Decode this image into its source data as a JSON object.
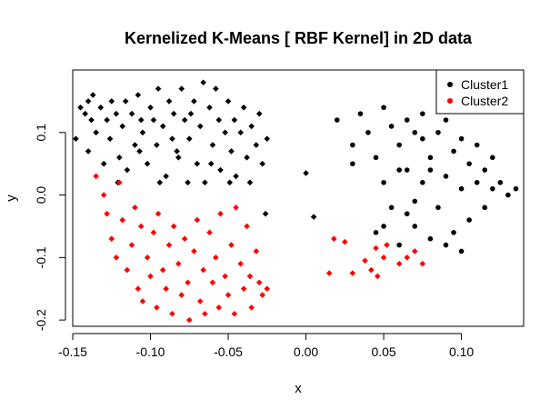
{
  "chart_data": {
    "type": "scatter",
    "title": "Kernelized K-Means [ RBF Kernel] in 2D data",
    "xlabel": "x",
    "ylabel": "y",
    "xlim": [
      -0.15,
      0.14
    ],
    "ylim": [
      -0.21,
      0.2
    ],
    "x_ticks": [
      "-0.15",
      "-0.10",
      "-0.05",
      "0.00",
      "0.05",
      "0.10"
    ],
    "y_ticks": [
      "-0.2",
      "-0.1",
      "0.0",
      "0.1"
    ],
    "grid": false,
    "legend_position": "top-right",
    "series": [
      {
        "name": "Cluster1",
        "color": "#000000",
        "markers": {
          "left_group": "diamond",
          "right_group": "circle"
        },
        "points": [
          [
            -0.145,
            0.14
          ],
          [
            -0.142,
            0.13
          ],
          [
            -0.14,
            0.07
          ],
          [
            -0.14,
            0.15
          ],
          [
            -0.138,
            0.12
          ],
          [
            -0.135,
            0.1
          ],
          [
            -0.132,
            0.14
          ],
          [
            -0.13,
            0.05
          ],
          [
            -0.128,
            0.12
          ],
          [
            -0.126,
            0.09
          ],
          [
            -0.125,
            0.15
          ],
          [
            -0.122,
            0.13
          ],
          [
            -0.12,
            0.06
          ],
          [
            -0.118,
            0.11
          ],
          [
            -0.116,
            0.15
          ],
          [
            -0.115,
            0.04
          ],
          [
            -0.112,
            0.13
          ],
          [
            -0.11,
            0.08
          ],
          [
            -0.108,
            0.16
          ],
          [
            -0.106,
            0.12
          ],
          [
            -0.105,
            0.1
          ],
          [
            -0.102,
            0.05
          ],
          [
            -0.1,
            0.14
          ],
          [
            -0.098,
            0.12
          ],
          [
            -0.096,
            0.08
          ],
          [
            -0.095,
            0.17
          ],
          [
            -0.092,
            0.11
          ],
          [
            -0.09,
            0.03
          ],
          [
            -0.088,
            0.15
          ],
          [
            -0.086,
            0.09
          ],
          [
            -0.085,
            0.13
          ],
          [
            -0.082,
            0.06
          ],
          [
            -0.08,
            0.17
          ],
          [
            -0.078,
            0.12
          ],
          [
            -0.076,
            0.02
          ],
          [
            -0.075,
            0.09
          ],
          [
            -0.072,
            0.15
          ],
          [
            -0.07,
            0.05
          ],
          [
            -0.068,
            0.11
          ],
          [
            -0.066,
            0.18
          ],
          [
            -0.065,
            0.02
          ],
          [
            -0.062,
            0.14
          ],
          [
            -0.06,
            0.08
          ],
          [
            -0.058,
            0.17
          ],
          [
            -0.056,
            0.12
          ],
          [
            -0.055,
            0.04
          ],
          [
            -0.052,
            0.1
          ],
          [
            -0.05,
            0.15
          ],
          [
            -0.048,
            0.07
          ],
          [
            -0.046,
            0.12
          ],
          [
            -0.045,
            0.03
          ],
          [
            -0.042,
            0.1
          ],
          [
            -0.04,
            0.14
          ],
          [
            -0.038,
            0.06
          ],
          [
            -0.036,
            0.02
          ],
          [
            -0.035,
            0.11
          ],
          [
            -0.032,
            0.08
          ],
          [
            -0.03,
            0.13
          ],
          [
            -0.028,
            0.05
          ],
          [
            -0.026,
            -0.03
          ],
          [
            -0.025,
            0.09
          ],
          [
            -0.148,
            0.09
          ],
          [
            -0.137,
            0.16
          ],
          [
            -0.121,
            0.02
          ],
          [
            -0.107,
            0.07
          ],
          [
            -0.094,
            0.02
          ],
          [
            -0.083,
            0.07
          ],
          [
            -0.074,
            0.13
          ],
          [
            -0.061,
            0.05
          ],
          [
            -0.049,
            0.02
          ],
          [
            0.0,
            0.035
          ],
          [
            0.005,
            -0.035
          ],
          [
            0.02,
            0.12
          ],
          [
            0.03,
            0.08
          ],
          [
            0.03,
            0.05
          ],
          [
            0.035,
            0.13
          ],
          [
            0.04,
            0.1
          ],
          [
            0.045,
            0.06
          ],
          [
            0.045,
            -0.06
          ],
          [
            0.05,
            0.14
          ],
          [
            0.05,
            0.02
          ],
          [
            0.055,
            0.11
          ],
          [
            0.055,
            -0.02
          ],
          [
            0.06,
            0.08
          ],
          [
            0.06,
            -0.08
          ],
          [
            0.065,
            0.12
          ],
          [
            0.065,
            0.04
          ],
          [
            0.07,
            -0.05
          ],
          [
            0.07,
            0.1
          ],
          [
            0.075,
            0.02
          ],
          [
            0.075,
            0.13
          ],
          [
            0.08,
            0.06
          ],
          [
            0.08,
            -0.07
          ],
          [
            0.085,
            -0.02
          ],
          [
            0.085,
            0.1
          ],
          [
            0.09,
            0.03
          ],
          [
            0.09,
            0.12
          ],
          [
            0.095,
            -0.06
          ],
          [
            0.095,
            0.07
          ],
          [
            0.1,
            0.01
          ],
          [
            0.1,
            0.09
          ],
          [
            0.105,
            -0.04
          ],
          [
            0.105,
            0.05
          ],
          [
            0.11,
            0.02
          ],
          [
            0.11,
            0.08
          ],
          [
            0.115,
            -0.02
          ],
          [
            0.115,
            0.04
          ],
          [
            0.12,
            0.01
          ],
          [
            0.12,
            0.06
          ],
          [
            0.125,
            0.02
          ],
          [
            0.13,
            0.0
          ],
          [
            0.135,
            0.01
          ],
          [
            0.1,
            -0.09
          ],
          [
            0.09,
            -0.08
          ],
          [
            0.06,
            0.04
          ],
          [
            0.07,
            -0.01
          ],
          [
            0.08,
            0.04
          ],
          [
            0.065,
            -0.03
          ],
          [
            0.05,
            -0.05
          ],
          [
            0.075,
            0.09
          ]
        ]
      },
      {
        "name": "Cluster2",
        "color": "#ff0000",
        "marker": "diamond",
        "points": [
          [
            -0.135,
            0.03
          ],
          [
            -0.13,
            0.0
          ],
          [
            -0.128,
            -0.03
          ],
          [
            -0.125,
            -0.07
          ],
          [
            -0.122,
            -0.1
          ],
          [
            -0.12,
            0.02
          ],
          [
            -0.118,
            -0.04
          ],
          [
            -0.115,
            -0.12
          ],
          [
            -0.112,
            -0.08
          ],
          [
            -0.11,
            -0.02
          ],
          [
            -0.108,
            -0.15
          ],
          [
            -0.106,
            -0.05
          ],
          [
            -0.105,
            -0.17
          ],
          [
            -0.102,
            -0.1
          ],
          [
            -0.1,
            -0.13
          ],
          [
            -0.098,
            -0.06
          ],
          [
            -0.096,
            -0.18
          ],
          [
            -0.095,
            -0.03
          ],
          [
            -0.092,
            -0.12
          ],
          [
            -0.09,
            -0.15
          ],
          [
            -0.088,
            -0.08
          ],
          [
            -0.086,
            -0.19
          ],
          [
            -0.085,
            -0.05
          ],
          [
            -0.082,
            -0.11
          ],
          [
            -0.08,
            -0.16
          ],
          [
            -0.078,
            -0.07
          ],
          [
            -0.076,
            -0.14
          ],
          [
            -0.075,
            -0.2
          ],
          [
            -0.072,
            -0.09
          ],
          [
            -0.07,
            -0.04
          ],
          [
            -0.068,
            -0.17
          ],
          [
            -0.066,
            -0.12
          ],
          [
            -0.065,
            -0.19
          ],
          [
            -0.062,
            -0.06
          ],
          [
            -0.06,
            -0.14
          ],
          [
            -0.058,
            -0.1
          ],
          [
            -0.056,
            -0.18
          ],
          [
            -0.055,
            -0.03
          ],
          [
            -0.052,
            -0.13
          ],
          [
            -0.05,
            -0.16
          ],
          [
            -0.048,
            -0.08
          ],
          [
            -0.046,
            -0.19
          ],
          [
            -0.045,
            -0.02
          ],
          [
            -0.042,
            -0.11
          ],
          [
            -0.04,
            -0.15
          ],
          [
            -0.038,
            -0.05
          ],
          [
            -0.036,
            -0.13
          ],
          [
            -0.035,
            -0.18
          ],
          [
            -0.032,
            -0.09
          ],
          [
            -0.03,
            -0.14
          ],
          [
            -0.028,
            -0.16
          ],
          [
            -0.025,
            -0.15
          ],
          [
            0.015,
            -0.125
          ],
          [
            0.018,
            -0.07
          ],
          [
            0.025,
            -0.075
          ],
          [
            0.03,
            -0.125
          ],
          [
            0.038,
            -0.105
          ],
          [
            0.042,
            -0.12
          ],
          [
            0.045,
            -0.085
          ],
          [
            0.046,
            -0.13
          ],
          [
            0.05,
            -0.1
          ],
          [
            0.052,
            -0.08
          ],
          [
            0.06,
            -0.11
          ],
          [
            0.065,
            -0.1
          ],
          [
            0.07,
            -0.09
          ],
          [
            0.075,
            -0.11
          ]
        ]
      }
    ]
  }
}
